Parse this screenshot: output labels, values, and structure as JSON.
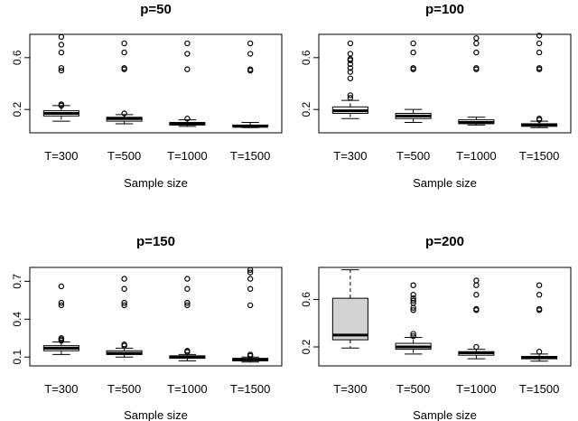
{
  "chart_data": [
    {
      "type": "boxplot",
      "title": "p=50",
      "xlabel": "Sample size",
      "ylabel": "",
      "ylim": [
        0.02,
        0.78
      ],
      "yticks": [
        0.2,
        0.6
      ],
      "ytick_labels": [
        "0.2",
        "0.6"
      ],
      "categories": [
        "T=300",
        "T=500",
        "T=1000",
        "T=1500"
      ],
      "boxes": [
        {
          "lw": 0.11,
          "q1": 0.15,
          "med": 0.17,
          "q3": 0.19,
          "uw": 0.23,
          "outliers": [
            0.23,
            0.24,
            0.5,
            0.52,
            0.64,
            0.7,
            0.76
          ]
        },
        {
          "lw": 0.09,
          "q1": 0.11,
          "med": 0.13,
          "q3": 0.14,
          "uw": 0.16,
          "outliers": [
            0.17,
            0.51,
            0.52,
            0.64,
            0.71
          ]
        },
        {
          "lw": 0.07,
          "q1": 0.08,
          "med": 0.09,
          "q3": 0.1,
          "uw": 0.12,
          "outliers": [
            0.13,
            0.51,
            0.63,
            0.71
          ]
        },
        {
          "lw": 0.06,
          "q1": 0.07,
          "med": 0.07,
          "q3": 0.08,
          "uw": 0.1,
          "outliers": [
            0.5,
            0.51,
            0.63,
            0.71
          ]
        }
      ],
      "fill": "#ffffff"
    },
    {
      "type": "boxplot",
      "title": "p=100",
      "xlabel": "Sample size",
      "ylabel": "",
      "ylim": [
        0.02,
        0.78
      ],
      "yticks": [
        0.2,
        0.6
      ],
      "ytick_labels": [
        "0.2",
        "0.6"
      ],
      "categories": [
        "T=300",
        "T=500",
        "T=1000",
        "T=1500"
      ],
      "boxes": [
        {
          "lw": 0.13,
          "q1": 0.17,
          "med": 0.19,
          "q3": 0.22,
          "uw": 0.27,
          "outliers": [
            0.29,
            0.31,
            0.44,
            0.49,
            0.52,
            0.55,
            0.58,
            0.59,
            0.63,
            0.71
          ]
        },
        {
          "lw": 0.1,
          "q1": 0.13,
          "med": 0.15,
          "q3": 0.17,
          "uw": 0.2,
          "outliers": [
            0.51,
            0.52,
            0.64,
            0.71
          ]
        },
        {
          "lw": 0.08,
          "q1": 0.09,
          "med": 0.1,
          "q3": 0.12,
          "uw": 0.14,
          "outliers": [
            0.51,
            0.52,
            0.64,
            0.71,
            0.75
          ]
        },
        {
          "lw": 0.06,
          "q1": 0.07,
          "med": 0.08,
          "q3": 0.09,
          "uw": 0.11,
          "outliers": [
            0.12,
            0.13,
            0.51,
            0.52,
            0.64,
            0.71,
            0.77
          ]
        }
      ],
      "fill": "#ffffff"
    },
    {
      "type": "boxplot",
      "title": "p=150",
      "xlabel": "Sample size",
      "ylabel": "",
      "ylim": [
        0.03,
        0.81
      ],
      "yticks": [
        0.1,
        0.4,
        0.7
      ],
      "ytick_labels": [
        "0.1",
        "0.4",
        "0.7"
      ],
      "categories": [
        "T=300",
        "T=500",
        "T=1000",
        "T=1500"
      ],
      "boxes": [
        {
          "lw": 0.12,
          "q1": 0.15,
          "med": 0.17,
          "q3": 0.19,
          "uw": 0.22,
          "outliers": [
            0.23,
            0.24,
            0.25,
            0.51,
            0.53,
            0.66
          ]
        },
        {
          "lw": 0.1,
          "q1": 0.12,
          "med": 0.13,
          "q3": 0.15,
          "uw": 0.17,
          "outliers": [
            0.19,
            0.2,
            0.51,
            0.53,
            0.64,
            0.72
          ]
        },
        {
          "lw": 0.07,
          "q1": 0.09,
          "med": 0.1,
          "q3": 0.11,
          "uw": 0.12,
          "outliers": [
            0.14,
            0.15,
            0.51,
            0.53,
            0.64,
            0.72
          ]
        },
        {
          "lw": 0.06,
          "q1": 0.07,
          "med": 0.08,
          "q3": 0.09,
          "uw": 0.1,
          "outliers": [
            0.11,
            0.12,
            0.51,
            0.64,
            0.72,
            0.77,
            0.79
          ]
        }
      ],
      "fill": "#ffffff"
    },
    {
      "type": "boxplot",
      "title": "p=200",
      "xlabel": "Sample size",
      "ylabel": "",
      "ylim": [
        0.04,
        0.87
      ],
      "yticks": [
        0.2,
        0.6
      ],
      "ytick_labels": [
        "0.2",
        "0.6"
      ],
      "categories": [
        "T=300",
        "T=500",
        "T=1000",
        "T=1500"
      ],
      "boxes": [
        {
          "lw": 0.19,
          "q1": 0.26,
          "med": 0.3,
          "q3": 0.61,
          "uw": 0.85,
          "outliers": []
        },
        {
          "lw": 0.14,
          "q1": 0.18,
          "med": 0.2,
          "q3": 0.23,
          "uw": 0.28,
          "outliers": [
            0.29,
            0.31,
            0.51,
            0.53,
            0.57,
            0.59,
            0.61,
            0.64,
            0.72
          ]
        },
        {
          "lw": 0.1,
          "q1": 0.13,
          "med": 0.15,
          "q3": 0.16,
          "uw": 0.18,
          "outliers": [
            0.2,
            0.51,
            0.52,
            0.64,
            0.72,
            0.76
          ]
        },
        {
          "lw": 0.08,
          "q1": 0.1,
          "med": 0.11,
          "q3": 0.12,
          "uw": 0.14,
          "outliers": [
            0.16,
            0.51,
            0.52,
            0.64,
            0.72
          ]
        }
      ],
      "fill": "#ffffff",
      "first_box_fill": "#d3d3d3"
    }
  ]
}
